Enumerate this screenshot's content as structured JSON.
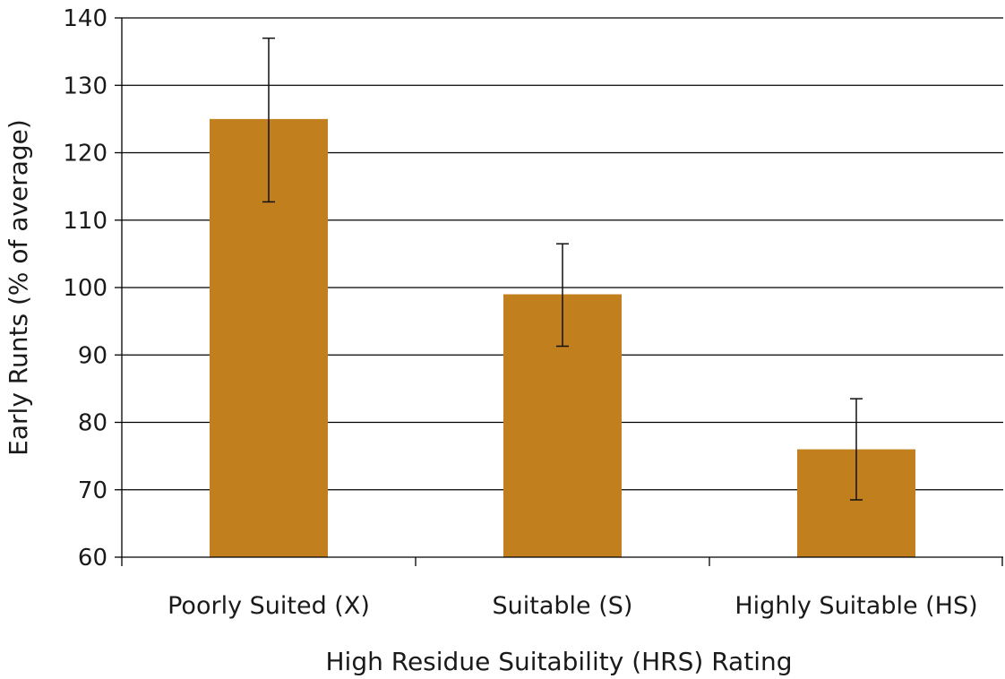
{
  "chart_data": {
    "type": "bar",
    "xlabel": "High Residue Suitability (HRS) Rating",
    "ylabel": "Early Runts (% of average)",
    "categories": [
      "Poorly Suited (X)",
      "Suitable (S)",
      "Highly Suitable (HS)"
    ],
    "values": [
      125,
      99,
      76
    ],
    "error_low": [
      112.7,
      91.3,
      68.5
    ],
    "error_high": [
      137,
      106.5,
      83.5
    ],
    "ylim": [
      60,
      140
    ],
    "yticks": [
      60,
      70,
      80,
      90,
      100,
      110,
      120,
      130,
      140
    ],
    "grid": true,
    "legend": "none",
    "bar_color": "#c17f1e"
  }
}
